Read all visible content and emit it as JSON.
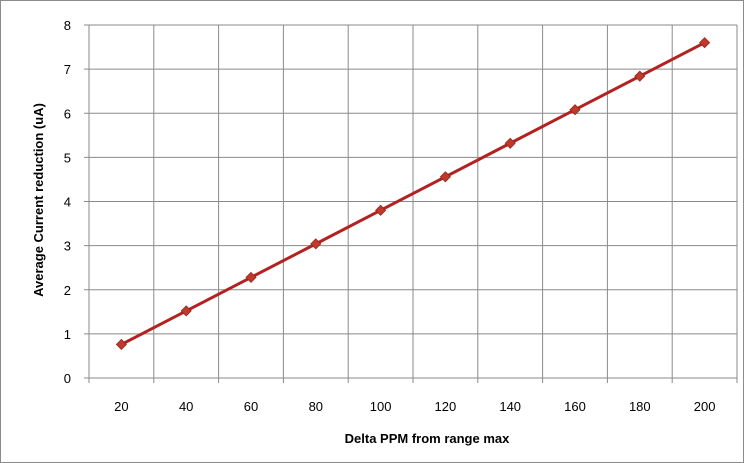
{
  "chart_data": {
    "type": "line",
    "title": "",
    "xlabel": "Delta PPM from range max",
    "ylabel": "Average Current reduction (uA)",
    "x": [
      20,
      40,
      60,
      80,
      100,
      120,
      140,
      160,
      180,
      200
    ],
    "series": [
      {
        "values": [
          0.76,
          1.52,
          2.28,
          3.04,
          3.8,
          4.56,
          5.32,
          6.08,
          6.84,
          7.6
        ],
        "color": "#c0392b",
        "line_color": "#b22222",
        "marker": "diamond"
      }
    ],
    "xlim": [
      10,
      210
    ],
    "ylim": [
      0,
      8
    ],
    "yticks": [
      0,
      1,
      2,
      3,
      4,
      5,
      6,
      7,
      8
    ],
    "grid": true,
    "legend": "none"
  }
}
